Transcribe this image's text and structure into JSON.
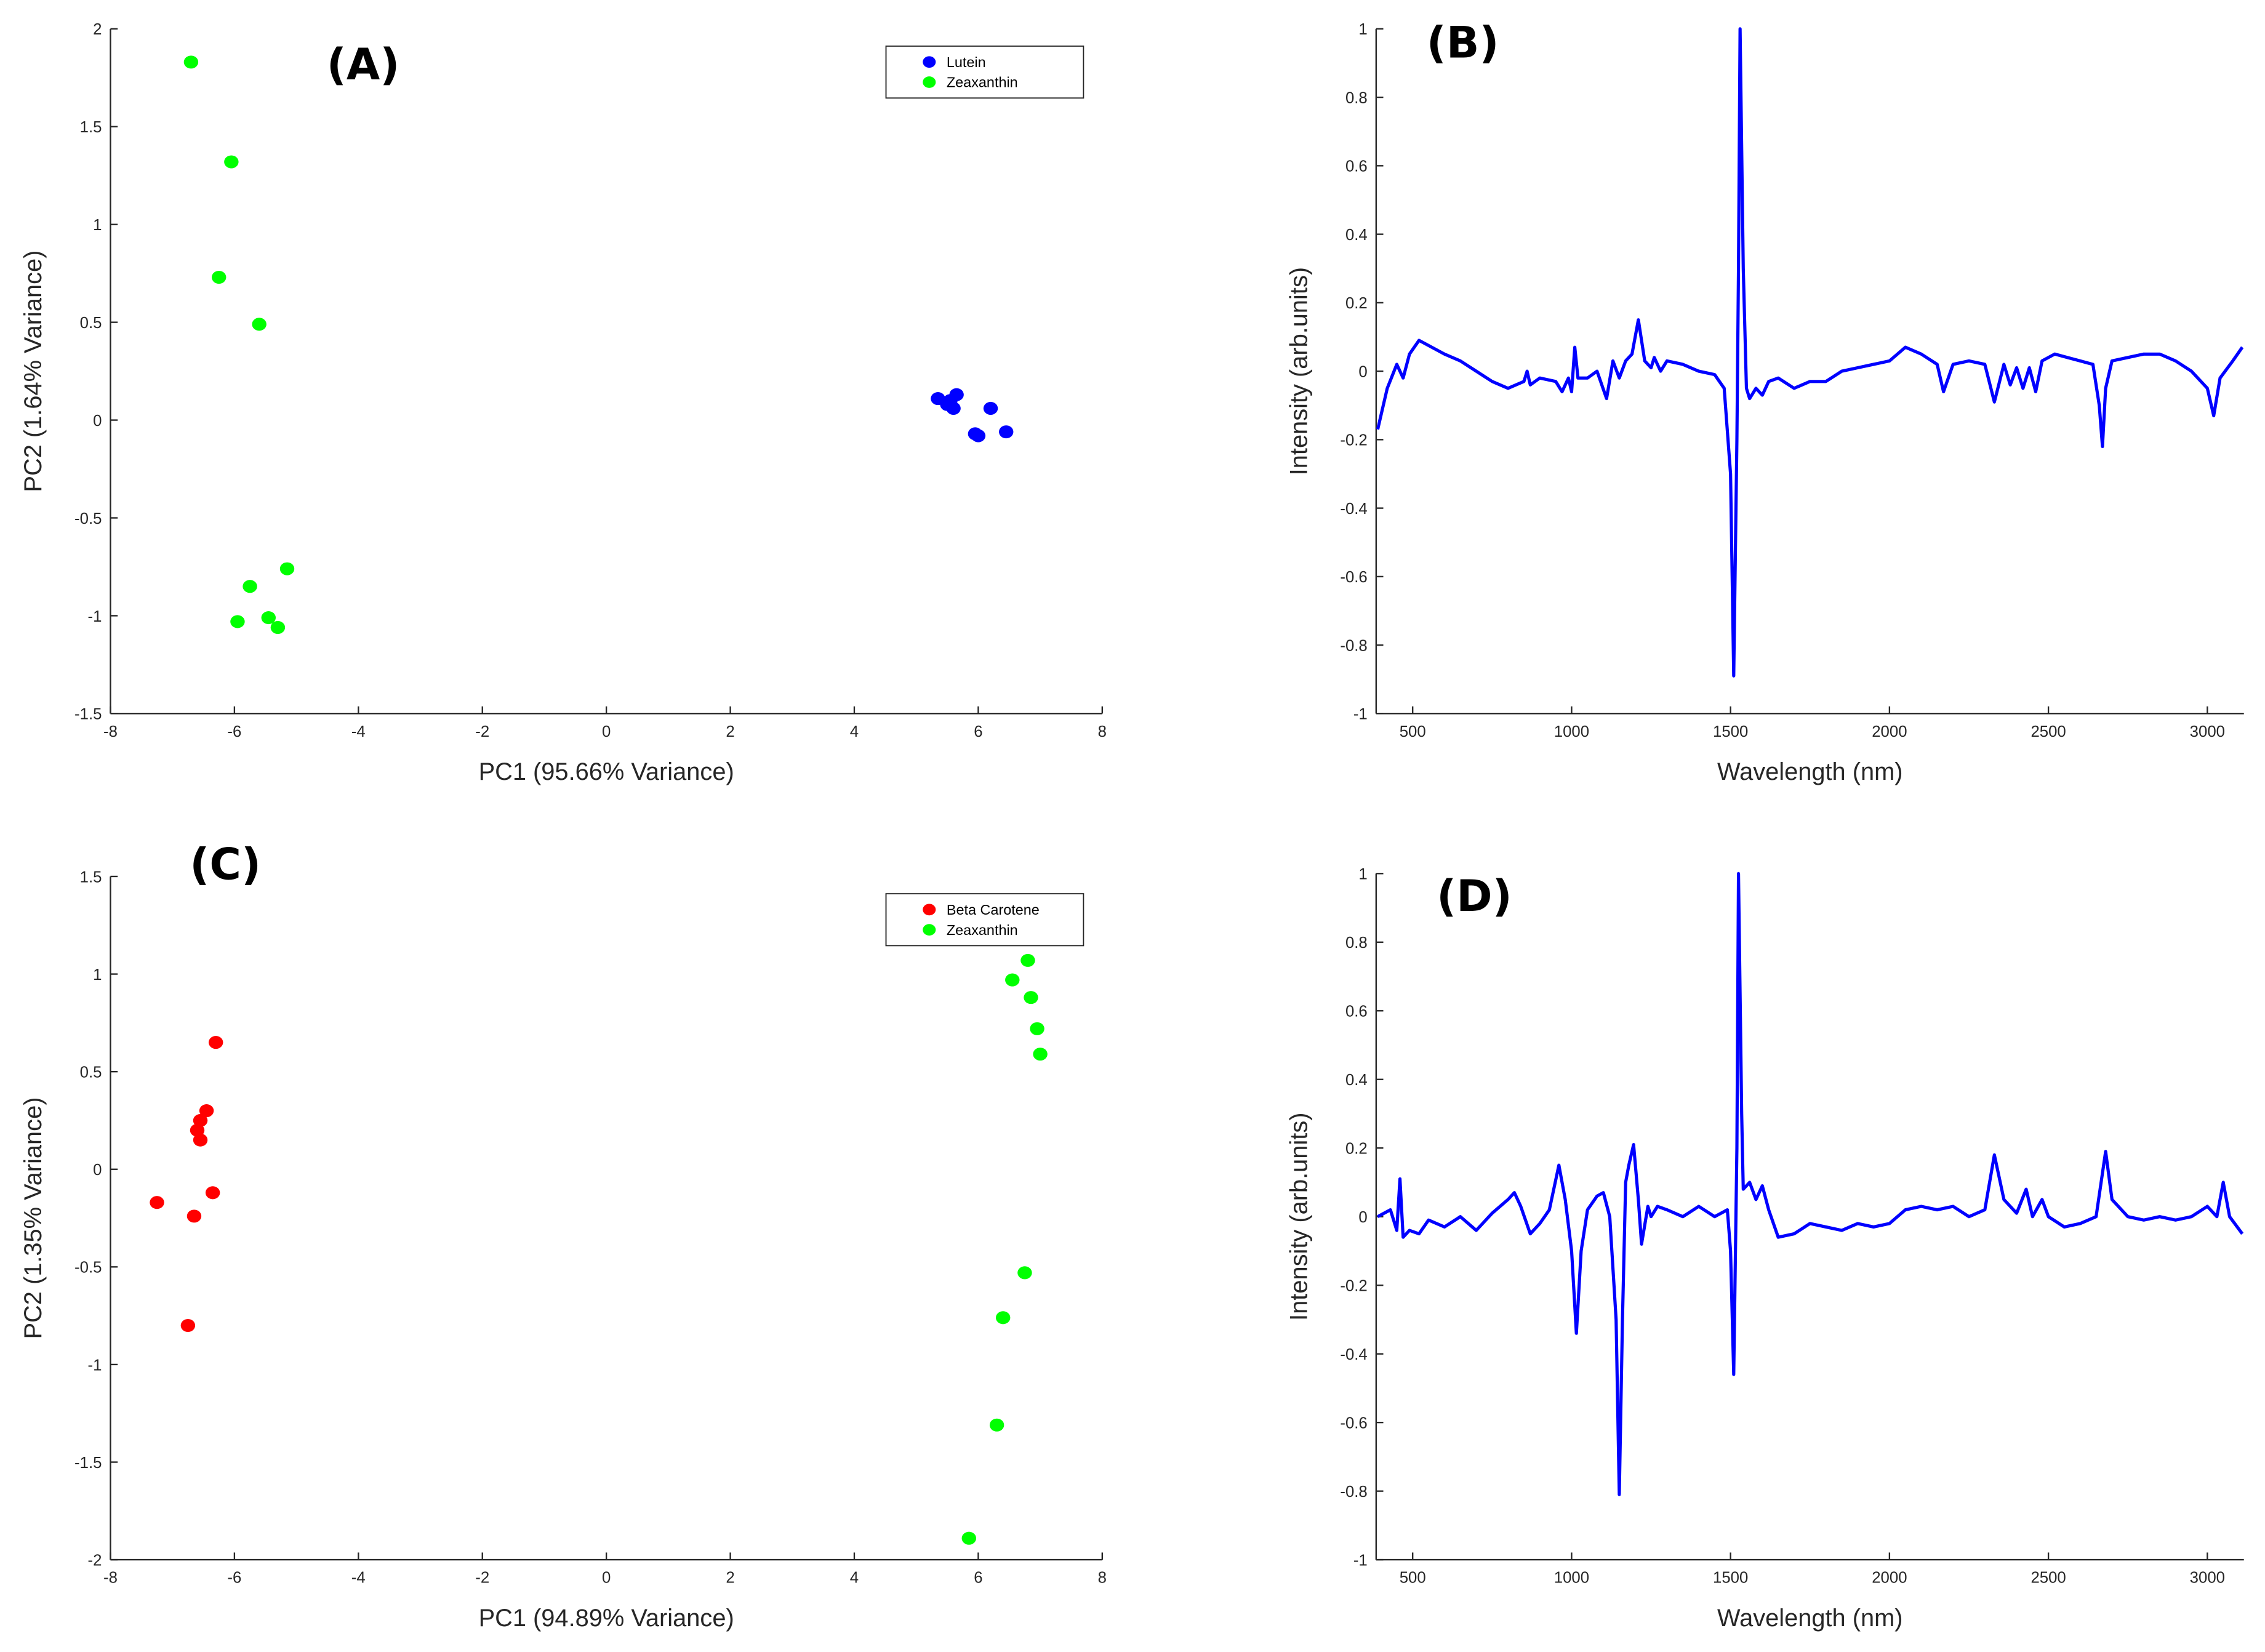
{
  "chart_data": [
    {
      "type": "scatter",
      "title": "(A)",
      "xlabel": "PC1 (95.66% Variance)",
      "ylabel": "PC2 (1.64% Variance)",
      "xlim": [
        -8,
        8
      ],
      "ylim": [
        -1.5,
        2
      ],
      "xticks": [
        -8,
        -6,
        -4,
        -2,
        0,
        2,
        4,
        6,
        8
      ],
      "yticks": [
        -1.5,
        -1,
        -0.5,
        0,
        0.5,
        1,
        1.5,
        2
      ],
      "legend": "upper right",
      "series": [
        {
          "name": "Lutein",
          "color": "#0000ff",
          "x": [
            5.35,
            5.55,
            5.6,
            5.65,
            5.5,
            6.2,
            5.95,
            6.0,
            6.45
          ],
          "values": [
            0.11,
            0.1,
            0.06,
            0.13,
            0.08,
            0.06,
            -0.07,
            -0.08,
            -0.06
          ]
        },
        {
          "name": "Zeaxanthin",
          "color": "#00ff00",
          "x": [
            -6.7,
            -6.05,
            -6.25,
            -5.6,
            -5.15,
            -5.75,
            -5.95,
            -5.45,
            -5.3
          ],
          "values": [
            1.83,
            1.32,
            0.73,
            0.49,
            -0.76,
            -0.85,
            -1.03,
            -1.01,
            -1.06
          ]
        }
      ]
    },
    {
      "type": "line",
      "title": "(B)",
      "xlabel": "Wavelength (nm)",
      "ylabel": "Intensity (arb.units)",
      "xlim": [
        385,
        3115
      ],
      "ylim": [
        -1,
        1
      ],
      "xticks": [
        500,
        1000,
        1500,
        2000,
        2500,
        3000
      ],
      "yticks": [
        -1,
        -0.8,
        -0.6,
        -0.4,
        -0.2,
        0,
        0.2,
        0.4,
        0.6,
        0.8,
        1
      ],
      "color": "#0000ff",
      "x": [
        390,
        420,
        450,
        470,
        490,
        520,
        560,
        600,
        650,
        700,
        750,
        800,
        850,
        860,
        870,
        900,
        950,
        970,
        990,
        1000,
        1010,
        1020,
        1050,
        1080,
        1110,
        1130,
        1150,
        1170,
        1190,
        1210,
        1230,
        1250,
        1260,
        1280,
        1300,
        1350,
        1400,
        1450,
        1480,
        1500,
        1510,
        1520,
        1525,
        1530,
        1540,
        1550,
        1560,
        1580,
        1600,
        1620,
        1650,
        1700,
        1750,
        1800,
        1850,
        1900,
        1950,
        2000,
        2050,
        2100,
        2150,
        2170,
        2200,
        2250,
        2300,
        2330,
        2360,
        2380,
        2400,
        2420,
        2440,
        2460,
        2480,
        2520,
        2560,
        2600,
        2640,
        2660,
        2670,
        2680,
        2700,
        2750,
        2800,
        2850,
        2900,
        2950,
        3000,
        3020,
        3040,
        3080,
        3110
      ],
      "values": [
        -0.17,
        -0.05,
        0.02,
        -0.02,
        0.05,
        0.09,
        0.07,
        0.05,
        0.03,
        0.0,
        -0.03,
        -0.05,
        -0.03,
        0,
        -0.04,
        -0.02,
        -0.03,
        -0.06,
        -0.02,
        -0.06,
        0.07,
        -0.02,
        -0.02,
        0.0,
        -0.08,
        0.03,
        -0.02,
        0.03,
        0.05,
        0.15,
        0.03,
        0.01,
        0.04,
        0.0,
        0.03,
        0.02,
        0.0,
        -0.01,
        -0.05,
        -0.3,
        -0.89,
        -0.2,
        0.3,
        1.0,
        0.3,
        -0.05,
        -0.08,
        -0.05,
        -0.07,
        -0.03,
        -0.02,
        -0.05,
        -0.03,
        -0.03,
        0.0,
        0.01,
        0.02,
        0.03,
        0.07,
        0.05,
        0.02,
        -0.06,
        0.02,
        0.03,
        0.02,
        -0.09,
        0.02,
        -0.04,
        0.01,
        -0.05,
        0.01,
        -0.06,
        0.03,
        0.05,
        0.04,
        0.03,
        0.02,
        -0.1,
        -0.22,
        -0.05,
        0.03,
        0.04,
        0.05,
        0.05,
        0.03,
        0.0,
        -0.05,
        -0.13,
        -0.02,
        0.03,
        0.07
      ]
    },
    {
      "type": "scatter",
      "title": "(C)",
      "xlabel": "PC1 (94.89% Variance)",
      "ylabel": "PC2 (1.35% Variance)",
      "xlim": [
        -8,
        8
      ],
      "ylim": [
        -2,
        1.5
      ],
      "xticks": [
        -8,
        -6,
        -4,
        -2,
        0,
        2,
        4,
        6,
        8
      ],
      "yticks": [
        -2,
        -1.5,
        -1,
        -0.5,
        0,
        0.5,
        1,
        1.5
      ],
      "legend": "upper right",
      "series": [
        {
          "name": "Beta Carotene",
          "color": "#ff0000",
          "x": [
            -6.3,
            -6.45,
            -6.55,
            -6.6,
            -6.55,
            -7.25,
            -6.35,
            -6.65,
            -6.75
          ],
          "values": [
            0.65,
            0.3,
            0.25,
            0.2,
            0.15,
            -0.17,
            -0.12,
            -0.24,
            -0.8
          ]
        },
        {
          "name": "Zeaxanthin",
          "color": "#00ff00",
          "x": [
            6.8,
            6.55,
            6.85,
            6.95,
            7.0,
            6.75,
            6.4,
            6.3,
            5.85
          ],
          "values": [
            1.07,
            0.97,
            0.88,
            0.72,
            0.59,
            -0.53,
            -0.76,
            -1.31,
            -1.89
          ]
        }
      ]
    },
    {
      "type": "line",
      "title": "(D)",
      "xlabel": "Wavelength (nm)",
      "ylabel": "Intensity (arb.units)",
      "xlim": [
        385,
        3115
      ],
      "ylim": [
        -1,
        1
      ],
      "xticks": [
        500,
        1000,
        1500,
        2000,
        2500,
        3000
      ],
      "yticks": [
        -1,
        -0.8,
        -0.6,
        -0.4,
        -0.2,
        0,
        0.2,
        0.4,
        0.6,
        0.8,
        1
      ],
      "color": "#0000ff",
      "x": [
        390,
        430,
        450,
        460,
        470,
        490,
        520,
        550,
        600,
        650,
        700,
        750,
        800,
        820,
        840,
        870,
        900,
        930,
        960,
        980,
        1000,
        1015,
        1030,
        1050,
        1080,
        1100,
        1120,
        1140,
        1150,
        1160,
        1170,
        1180,
        1195,
        1210,
        1220,
        1240,
        1250,
        1270,
        1300,
        1350,
        1400,
        1450,
        1490,
        1500,
        1510,
        1520,
        1525,
        1535,
        1540,
        1560,
        1580,
        1600,
        1620,
        1650,
        1700,
        1750,
        1800,
        1850,
        1900,
        1950,
        2000,
        2050,
        2100,
        2150,
        2200,
        2250,
        2300,
        2330,
        2360,
        2400,
        2430,
        2450,
        2480,
        2500,
        2550,
        2600,
        2650,
        2680,
        2700,
        2750,
        2800,
        2850,
        2900,
        2950,
        3000,
        3030,
        3050,
        3070,
        3110
      ],
      "values": [
        0.0,
        0.02,
        -0.04,
        0.11,
        -0.06,
        -0.04,
        -0.05,
        -0.01,
        -0.03,
        0.0,
        -0.04,
        0.01,
        0.05,
        0.07,
        0.03,
        -0.05,
        -0.02,
        0.02,
        0.15,
        0.05,
        -0.1,
        -0.34,
        -0.1,
        0.02,
        0.06,
        0.07,
        0.0,
        -0.3,
        -0.81,
        -0.3,
        0.1,
        0.15,
        0.21,
        0.05,
        -0.08,
        0.03,
        0.0,
        0.03,
        0.02,
        0.0,
        0.03,
        0.0,
        0.02,
        -0.1,
        -0.46,
        0.2,
        1.0,
        0.3,
        0.08,
        0.1,
        0.05,
        0.09,
        0.02,
        -0.06,
        -0.05,
        -0.02,
        -0.03,
        -0.04,
        -0.02,
        -0.03,
        -0.02,
        0.02,
        0.03,
        0.02,
        0.03,
        0.0,
        0.02,
        0.18,
        0.05,
        0.01,
        0.08,
        0.0,
        0.05,
        0.0,
        -0.03,
        -0.02,
        0.0,
        0.19,
        0.05,
        0.0,
        -0.01,
        0.0,
        -0.01,
        0.0,
        0.03,
        0.0,
        0.1,
        0.0,
        -0.05
      ]
    }
  ]
}
